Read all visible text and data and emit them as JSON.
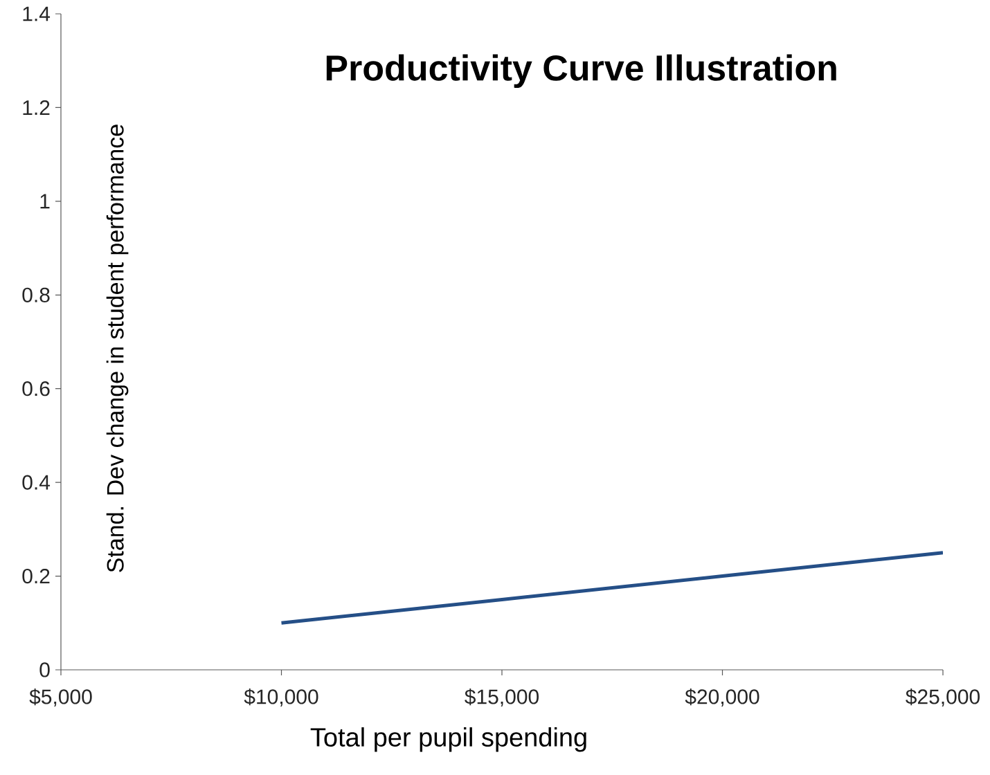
{
  "chart_data": {
    "type": "line",
    "title": "Productivity Curve Illustration",
    "xlabel": "Total per pupil spending",
    "ylabel": "Stand. Dev change in student performance",
    "x": [
      10000,
      15000,
      20000,
      25000
    ],
    "series": [
      {
        "color": "#254f87",
        "values": [
          0.1,
          0.15,
          0.2,
          0.25
        ]
      }
    ],
    "xlim": [
      5000,
      25000
    ],
    "ylim": [
      0,
      1.4
    ],
    "xticks": [
      {
        "value": 5000,
        "label": "$5,000"
      },
      {
        "value": 10000,
        "label": "$10,000"
      },
      {
        "value": 15000,
        "label": "$15,000"
      },
      {
        "value": 20000,
        "label": "$20,000"
      },
      {
        "value": 25000,
        "label": "$25,000"
      }
    ],
    "yticks": [
      0,
      0.2,
      0.4,
      0.6,
      0.8,
      1,
      1.2,
      1.4
    ]
  }
}
